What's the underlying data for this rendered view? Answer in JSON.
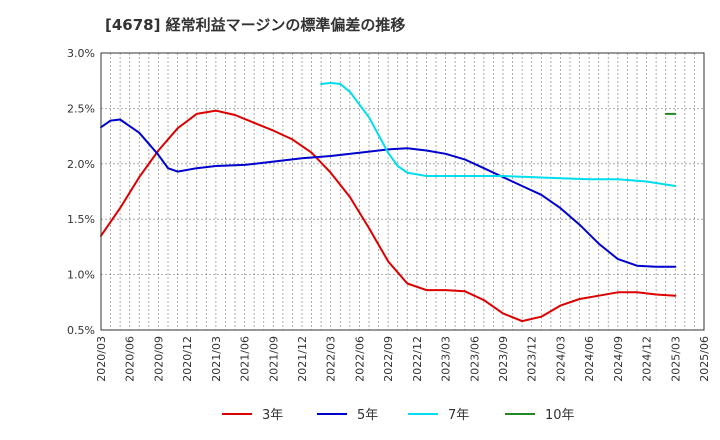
{
  "chart_data": {
    "type": "line",
    "title": "[4678]  経常利益マージンの標準偏差の推移",
    "xlabel": "",
    "ylabel": "",
    "x_ticks": [
      "2020/03",
      "2020/06",
      "2020/09",
      "2020/12",
      "2021/03",
      "2021/06",
      "2021/09",
      "2021/12",
      "2022/03",
      "2022/06",
      "2022/09",
      "2022/12",
      "2023/03",
      "2023/06",
      "2023/09",
      "2023/12",
      "2024/03",
      "2024/06",
      "2024/09",
      "2024/12",
      "2025/03",
      "2025/06"
    ],
    "y_ticks": [
      "0.5%",
      "1.0%",
      "1.5%",
      "2.0%",
      "2.5%",
      "3.0%"
    ],
    "ylim": [
      0.5,
      3.0
    ],
    "grid": true,
    "legend_position": "bottom",
    "series": [
      {
        "name": "3年",
        "color": "#dd0000",
        "points": [
          [
            "2020/03",
            1.35
          ],
          [
            "2020/05",
            1.6
          ],
          [
            "2020/07",
            1.88
          ],
          [
            "2020/09",
            2.12
          ],
          [
            "2020/11",
            2.32
          ],
          [
            "2021/01",
            2.45
          ],
          [
            "2021/03",
            2.48
          ],
          [
            "2021/05",
            2.44
          ],
          [
            "2021/07",
            2.37
          ],
          [
            "2021/09",
            2.3
          ],
          [
            "2021/11",
            2.22
          ],
          [
            "2022/01",
            2.1
          ],
          [
            "2022/03",
            1.92
          ],
          [
            "2022/05",
            1.7
          ],
          [
            "2022/07",
            1.42
          ],
          [
            "2022/09",
            1.12
          ],
          [
            "2022/11",
            0.92
          ],
          [
            "2023/01",
            0.86
          ],
          [
            "2023/03",
            0.86
          ],
          [
            "2023/05",
            0.85
          ],
          [
            "2023/07",
            0.77
          ],
          [
            "2023/09",
            0.65
          ],
          [
            "2023/11",
            0.58
          ],
          [
            "2024/01",
            0.62
          ],
          [
            "2024/03",
            0.72
          ],
          [
            "2024/05",
            0.78
          ],
          [
            "2024/07",
            0.81
          ],
          [
            "2024/09",
            0.84
          ],
          [
            "2024/11",
            0.84
          ],
          [
            "2025/01",
            0.82
          ],
          [
            "2025/03",
            0.81
          ]
        ]
      },
      {
        "name": "5年",
        "color": "#0000cc",
        "points": [
          [
            "2020/03",
            2.33
          ],
          [
            "2020/04",
            2.39
          ],
          [
            "2020/05",
            2.4
          ],
          [
            "2020/07",
            2.28
          ],
          [
            "2020/09",
            2.08
          ],
          [
            "2020/10",
            1.96
          ],
          [
            "2020/11",
            1.93
          ],
          [
            "2021/01",
            1.96
          ],
          [
            "2021/03",
            1.98
          ],
          [
            "2021/06",
            1.99
          ],
          [
            "2021/09",
            2.02
          ],
          [
            "2021/12",
            2.05
          ],
          [
            "2022/03",
            2.07
          ],
          [
            "2022/06",
            2.1
          ],
          [
            "2022/09",
            2.13
          ],
          [
            "2022/11",
            2.14
          ],
          [
            "2023/01",
            2.12
          ],
          [
            "2023/03",
            2.09
          ],
          [
            "2023/05",
            2.04
          ],
          [
            "2023/07",
            1.96
          ],
          [
            "2023/09",
            1.88
          ],
          [
            "2023/11",
            1.8
          ],
          [
            "2024/01",
            1.72
          ],
          [
            "2024/03",
            1.6
          ],
          [
            "2024/05",
            1.45
          ],
          [
            "2024/07",
            1.28
          ],
          [
            "2024/09",
            1.14
          ],
          [
            "2024/11",
            1.08
          ],
          [
            "2025/01",
            1.07
          ],
          [
            "2025/03",
            1.07
          ]
        ]
      },
      {
        "name": "7年",
        "color": "#00ddee",
        "points": [
          [
            "2022/02",
            2.72
          ],
          [
            "2022/03",
            2.73
          ],
          [
            "2022/04",
            2.72
          ],
          [
            "2022/05",
            2.65
          ],
          [
            "2022/07",
            2.42
          ],
          [
            "2022/09",
            2.1
          ],
          [
            "2022/10",
            1.98
          ],
          [
            "2022/11",
            1.92
          ],
          [
            "2023/01",
            1.89
          ],
          [
            "2023/03",
            1.89
          ],
          [
            "2023/06",
            1.89
          ],
          [
            "2023/09",
            1.89
          ],
          [
            "2023/12",
            1.88
          ],
          [
            "2024/03",
            1.87
          ],
          [
            "2024/06",
            1.86
          ],
          [
            "2024/09",
            1.86
          ],
          [
            "2024/12",
            1.84
          ],
          [
            "2025/03",
            1.8
          ]
        ]
      },
      {
        "name": "10年",
        "color": "#228822",
        "points": [
          [
            "2025/02",
            2.45
          ],
          [
            "2025/03",
            2.45
          ]
        ]
      }
    ]
  }
}
